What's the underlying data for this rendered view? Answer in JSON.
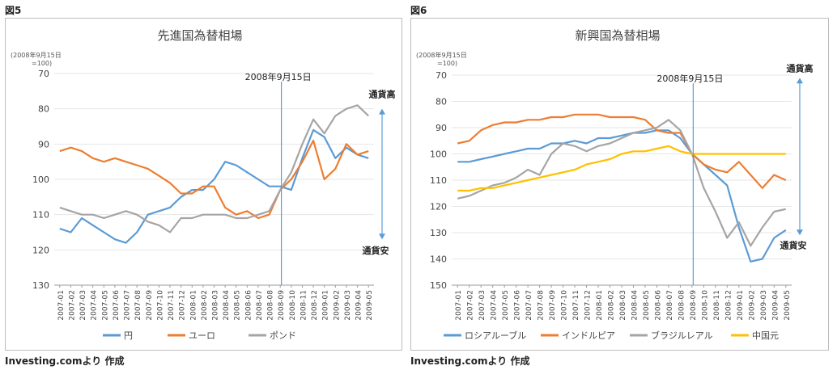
{
  "figures": [
    {
      "label": "図5",
      "source": "Investing.comより 作成"
    },
    {
      "label": "図6",
      "source": "Investing.comより 作成"
    }
  ],
  "chart_data": [
    {
      "type": "line",
      "title": "先進国為替相場",
      "y_unit_line1": "(2008年9月15日",
      "y_unit_line2": "=100)",
      "ylim": [
        70,
        130
      ],
      "y_inverted": true,
      "yticks": [
        70,
        80,
        90,
        100,
        110,
        120,
        130
      ],
      "x_categories": [
        "2007-01",
        "2007-02",
        "2007-03",
        "2007-04",
        "2007-05",
        "2007-06",
        "2007-07",
        "2007-08",
        "2007-09",
        "2007-10",
        "2007-11",
        "2007-12",
        "2008-01",
        "2008-02",
        "2008-03",
        "2008-04",
        "2008-05",
        "2008-06",
        "2008-07",
        "2008-08",
        "2008-09",
        "2008-10",
        "2008-11",
        "2008-12",
        "2009-01",
        "2009-02",
        "2009-03",
        "2009-04",
        "2009-05"
      ],
      "vline": {
        "x": "2008-09",
        "label": "2008年9月15日"
      },
      "annotation_top": "通貨高",
      "annotation_bottom": "通貨安",
      "legend_position": "bottom",
      "series": [
        {
          "name": "円",
          "color": "#5b9bd5",
          "values": [
            114,
            115,
            111,
            113,
            115,
            117,
            118,
            115,
            110,
            109,
            108,
            105,
            103,
            103,
            100,
            95,
            96,
            98,
            100,
            102,
            102,
            103,
            94,
            86,
            88,
            94,
            91,
            93,
            94
          ]
        },
        {
          "name": "ユーロ",
          "color": "#ed7d31",
          "values": [
            92,
            91,
            92,
            94,
            95,
            94,
            95,
            96,
            97,
            99,
            101,
            104,
            104,
            102,
            102,
            108,
            110,
            109,
            111,
            110,
            103,
            100,
            95,
            89,
            100,
            97,
            90,
            93,
            92
          ]
        },
        {
          "name": "ポンド",
          "color": "#a5a5a5",
          "values": [
            108,
            109,
            110,
            110,
            111,
            110,
            109,
            110,
            112,
            113,
            115,
            111,
            111,
            110,
            110,
            110,
            111,
            111,
            110,
            109,
            103,
            98,
            90,
            83,
            87,
            82,
            80,
            79,
            82
          ]
        }
      ]
    },
    {
      "type": "line",
      "title": "新興国為替相場",
      "y_unit_line1": "(2008年9月15日",
      "y_unit_line2": "=100)",
      "ylim": [
        70,
        150
      ],
      "y_inverted": true,
      "yticks": [
        70,
        80,
        90,
        100,
        110,
        120,
        130,
        140,
        150
      ],
      "x_categories": [
        "2007-01",
        "2007-02",
        "2007-03",
        "2007-04",
        "2007-05",
        "2007-06",
        "2007-07",
        "2007-08",
        "2007-09",
        "2007-10",
        "2007-11",
        "2007-12",
        "2008-01",
        "2008-02",
        "2008-03",
        "2008-04",
        "2008-05",
        "2008-06",
        "2008-07",
        "2008-08",
        "2008-09",
        "2008-10",
        "2008-11",
        "2008-12",
        "2009-01",
        "2009-02",
        "2009-03",
        "2009-04",
        "2009-05"
      ],
      "vline": {
        "x": "2008-09",
        "label": "2008年9月15日"
      },
      "annotation_top": "通貨高",
      "annotation_bottom": "通貨安",
      "legend_position": "bottom",
      "series": [
        {
          "name": "ロシアルーブル",
          "color": "#5b9bd5",
          "values": [
            103,
            103,
            102,
            101,
            100,
            99,
            98,
            98,
            96,
            96,
            95,
            96,
            94,
            94,
            93,
            92,
            92,
            91,
            91,
            94,
            100,
            104,
            108,
            112,
            128,
            141,
            140,
            132,
            129
          ]
        },
        {
          "name": "インドルピア",
          "color": "#ed7d31",
          "values": [
            96,
            95,
            91,
            89,
            88,
            88,
            87,
            87,
            86,
            86,
            85,
            85,
            85,
            86,
            86,
            86,
            87,
            91,
            92,
            92,
            100,
            104,
            106,
            107,
            103,
            108,
            113,
            108,
            110
          ]
        },
        {
          "name": "ブラジルレアル",
          "color": "#a5a5a5",
          "values": [
            117,
            116,
            114,
            112,
            111,
            109,
            106,
            108,
            100,
            96,
            97,
            99,
            97,
            96,
            94,
            92,
            91,
            90,
            87,
            91,
            100,
            113,
            122,
            132,
            126,
            135,
            128,
            122,
            121
          ]
        },
        {
          "name": "中国元",
          "color": "#ffc000",
          "values": [
            114,
            114,
            113,
            113,
            112,
            111,
            110,
            109,
            108,
            107,
            106,
            104,
            103,
            102,
            100,
            99,
            99,
            98,
            97,
            99,
            100,
            100,
            100,
            100,
            100,
            100,
            100,
            100,
            100
          ]
        }
      ]
    }
  ]
}
